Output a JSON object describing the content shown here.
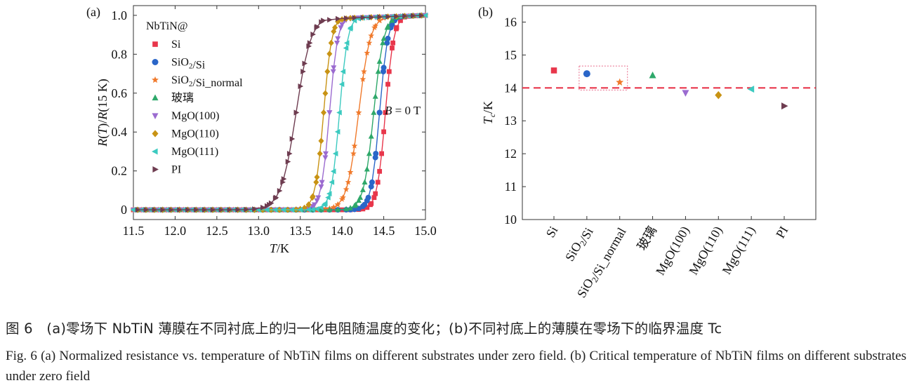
{
  "panels": {
    "a": {
      "label": "(a)"
    },
    "b": {
      "label": "(b)"
    }
  },
  "chart_data": [
    {
      "type": "scatter",
      "panel": "a",
      "xlabel": "T/K",
      "ylabel": "R(T)/R(15 K)",
      "xlim": [
        11.5,
        15.0
      ],
      "ylim": [
        -0.05,
        1.05
      ],
      "xticks": [
        "11.5",
        "12.0",
        "12.5",
        "13.0",
        "13.5",
        "14.0",
        "14.5",
        "15.0"
      ],
      "yticks": [
        "0",
        "0.2",
        "0.4",
        "0.6",
        "0.8",
        "1.0"
      ],
      "legend_title": "NbTiN@",
      "legend_position": "top-left",
      "annotation": "B = 0 T",
      "series": [
        {
          "name": "Si",
          "marker": "square",
          "color": "#e8364b",
          "tc": 14.52,
          "w": 0.05
        },
        {
          "name": "SiO2/Si",
          "marker": "circle",
          "color": "#2a66c8",
          "tc": 14.45,
          "w": 0.05
        },
        {
          "name": "SiO2/Si_normal",
          "marker": "star",
          "color": "#f07a2c",
          "tc": 14.2,
          "w": 0.07
        },
        {
          "name": "玻璃",
          "marker": "triangle-up",
          "color": "#2ea86a",
          "tc": 14.38,
          "w": 0.06
        },
        {
          "name": "MgO(100)",
          "marker": "triangle-down",
          "color": "#9b6bd0",
          "tc": 13.85,
          "w": 0.05
        },
        {
          "name": "MgO(110)",
          "marker": "diamond",
          "color": "#c89314",
          "tc": 13.78,
          "w": 0.05
        },
        {
          "name": "MgO(111)",
          "marker": "triangle-left",
          "color": "#3ccac0",
          "tc": 13.97,
          "w": 0.05
        },
        {
          "name": "PI",
          "marker": "triangle-right",
          "color": "#6e3c50",
          "tc": 13.45,
          "w": 0.09
        }
      ]
    },
    {
      "type": "scatter",
      "panel": "b",
      "ylabel": "Tc/K",
      "ylim": [
        10,
        16.5
      ],
      "yticks": [
        "10",
        "11",
        "12",
        "13",
        "14",
        "15",
        "16"
      ],
      "categories": [
        "Si",
        "SiO2/Si",
        "SiO2/Si_normal",
        "玻璃",
        "MgO(100)",
        "MgO(110)",
        "MgO(111)",
        "PI"
      ],
      "values": [
        14.53,
        14.43,
        14.17,
        14.38,
        13.85,
        13.78,
        13.96,
        13.45
      ],
      "reference_line": 14.0,
      "highlight_box": [
        "SiO2/Si",
        "SiO2/Si_normal"
      ]
    }
  ],
  "captions": {
    "zh": "图 6　(a)零场下 NbTiN 薄膜在不同衬底上的归一化电阻随温度的变化；(b)不同衬底上的薄膜在零场下的临界温度 Tc",
    "en": "Fig. 6 (a) Normalized resistance vs. temperature of NbTiN films on different substrates under zero field. (b) Critical temperature of NbTiN films on different substrates under zero field"
  }
}
